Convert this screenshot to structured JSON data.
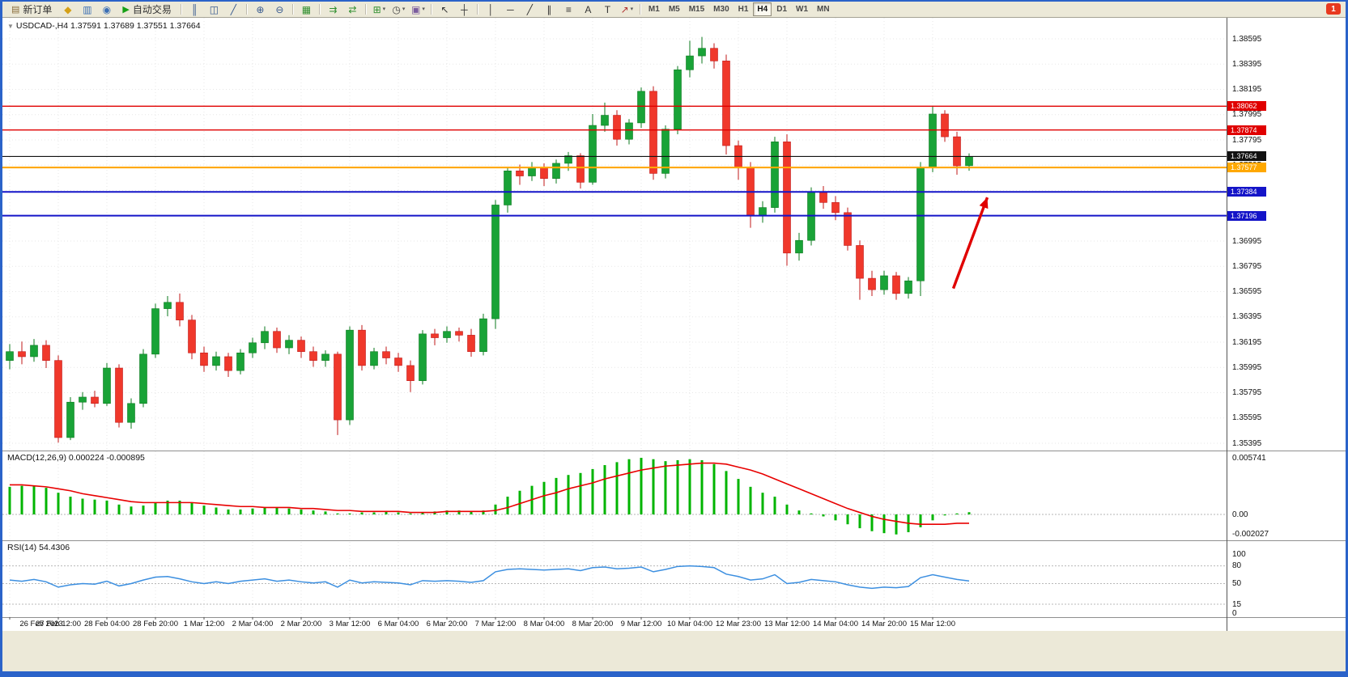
{
  "window": {
    "border_color": "#2b63c9",
    "bg": "#ece9d8"
  },
  "toolbar": {
    "items": [
      {
        "kind": "button",
        "name": "new-order-button",
        "icon_name": "new-order-icon",
        "glyph": "▤",
        "glyph_color": "#8a6d3b",
        "label": "新订单"
      },
      {
        "kind": "icon",
        "name": "metaeditor-icon",
        "glyph": "◆",
        "color": "#d4a017"
      },
      {
        "kind": "icon",
        "name": "market-watch-icon",
        "glyph": "▥",
        "color": "#3b6fb5"
      },
      {
        "kind": "icon",
        "name": "signals-icon",
        "glyph": "◉",
        "color": "#3b6fb5"
      },
      {
        "kind": "button",
        "name": "autotrading-button",
        "icon_name": "autotrading-icon",
        "glyph": "▶",
        "glyph_color": "#16a016",
        "label": "自动交易"
      },
      {
        "kind": "sep"
      },
      {
        "kind": "icon",
        "name": "bar-chart-icon",
        "glyph": "║",
        "color": "#35588f"
      },
      {
        "kind": "icon",
        "name": "candlestick-chart-icon",
        "glyph": "◫",
        "color": "#35588f"
      },
      {
        "kind": "icon",
        "name": "line-chart-icon",
        "glyph": "╱",
        "color": "#35588f"
      },
      {
        "kind": "sep"
      },
      {
        "kind": "icon",
        "name": "zoom-in-icon",
        "glyph": "⊕",
        "color": "#35588f"
      },
      {
        "kind": "icon",
        "name": "zoom-out-icon",
        "glyph": "⊖",
        "color": "#35588f"
      },
      {
        "kind": "sep"
      },
      {
        "kind": "icon",
        "name": "tile-windows-icon",
        "glyph": "▦",
        "color": "#2f8f2f"
      },
      {
        "kind": "sep"
      },
      {
        "kind": "icon",
        "name": "auto-scroll-icon",
        "glyph": "⇉",
        "color": "#2f8f2f"
      },
      {
        "kind": "icon",
        "name": "chart-shift-icon",
        "glyph": "⇄",
        "color": "#2f8f2f"
      },
      {
        "kind": "sep"
      },
      {
        "kind": "icon",
        "name": "indicators-icon",
        "glyph": "⊞",
        "color": "#2f8f2f",
        "dropdown": true
      },
      {
        "kind": "icon",
        "name": "periods-icon",
        "glyph": "◷",
        "color": "#444444",
        "dropdown": true
      },
      {
        "kind": "icon",
        "name": "templates-icon",
        "glyph": "▣",
        "color": "#7a5c9e",
        "dropdown": true
      },
      {
        "kind": "sep"
      },
      {
        "kind": "icon",
        "name": "cursor-icon",
        "glyph": "↖",
        "color": "#333333"
      },
      {
        "kind": "icon",
        "name": "crosshair-icon",
        "glyph": "┼",
        "color": "#333333"
      },
      {
        "kind": "sep"
      },
      {
        "kind": "icon",
        "name": "vertical-line-icon",
        "glyph": "│",
        "color": "#333333"
      },
      {
        "kind": "icon",
        "name": "horizontal-line-icon",
        "glyph": "─",
        "color": "#333333"
      },
      {
        "kind": "icon",
        "name": "trendline-icon",
        "glyph": "╱",
        "color": "#333333"
      },
      {
        "kind": "icon",
        "name": "channel-icon",
        "glyph": "∥",
        "color": "#333333"
      },
      {
        "kind": "icon",
        "name": "fibonacci-icon",
        "glyph": "≡",
        "color": "#333333"
      },
      {
        "kind": "icon",
        "name": "text-icon",
        "glyph": "A",
        "color": "#333333"
      },
      {
        "kind": "icon",
        "name": "label-icon",
        "glyph": "T",
        "color": "#333333"
      },
      {
        "kind": "icon",
        "name": "arrows-icon",
        "glyph": "↗",
        "color": "#b03030",
        "dropdown": true
      },
      {
        "kind": "sep"
      },
      {
        "kind": "tf",
        "name": "timeframe-m1",
        "label": "M1"
      },
      {
        "kind": "tf",
        "name": "timeframe-m5",
        "label": "M5"
      },
      {
        "kind": "tf",
        "name": "timeframe-m15",
        "label": "M15"
      },
      {
        "kind": "tf",
        "name": "timeframe-m30",
        "label": "M30"
      },
      {
        "kind": "tf",
        "name": "timeframe-h1",
        "label": "H1"
      },
      {
        "kind": "tf",
        "name": "timeframe-h4",
        "label": "H4",
        "active": true
      },
      {
        "kind": "tf",
        "name": "timeframe-d1",
        "label": "D1"
      },
      {
        "kind": "tf",
        "name": "timeframe-w1",
        "label": "W1"
      },
      {
        "kind": "tf",
        "name": "timeframe-mn",
        "label": "MN"
      }
    ],
    "notification": {
      "label": "1"
    }
  },
  "chart_data": [
    {
      "type": "candlestick",
      "symbol": "USDCAD",
      "timeframe": "H4",
      "collapse_glyph": "▼",
      "title": "USDCAD-,H4 1.37591 1.37689 1.37551 1.37664",
      "current": {
        "open": "1.37591",
        "high": "1.37689",
        "low": "1.37551",
        "close": "1.37664"
      },
      "x_tick_labels": [
        "26 Feb 2023",
        "27 Feb 12:00",
        "28 Feb 04:00",
        "28 Feb 20:00",
        "1 Mar 12:00",
        "2 Mar 04:00",
        "2 Mar 20:00",
        "3 Mar 12:00",
        "6 Mar 04:00",
        "6 Mar 20:00",
        "7 Mar 12:00",
        "8 Mar 04:00",
        "8 Mar 20:00",
        "9 Mar 12:00",
        "10 Mar 04:00",
        "12 Mar 23:00",
        "13 Mar 12:00",
        "14 Mar 04:00",
        "14 Mar 20:00",
        "15 Mar 12:00"
      ],
      "x_tick_every": 4,
      "y_axis": {
        "max": 1.38595,
        "min": 1.35395,
        "step": 0.002,
        "labels": [
          "1.38595",
          "1.38395",
          "1.38195",
          "1.37995",
          "1.37795",
          "1.37595",
          "1.37395",
          "1.37195",
          "1.36995",
          "1.36795",
          "1.36595",
          "1.36395",
          "1.36195",
          "1.35995",
          "1.35795",
          "1.35595",
          "1.35395"
        ]
      },
      "ohlc": [
        [
          1.3605,
          1.3618,
          1.3598,
          1.3612
        ],
        [
          1.3612,
          1.362,
          1.3602,
          1.3608
        ],
        [
          1.3608,
          1.3622,
          1.3604,
          1.3617
        ],
        [
          1.3617,
          1.3621,
          1.3599,
          1.3605
        ],
        [
          1.3605,
          1.3609,
          1.354,
          1.3544
        ],
        [
          1.3544,
          1.3576,
          1.3542,
          1.3572
        ],
        [
          1.3572,
          1.358,
          1.3566,
          1.3576
        ],
        [
          1.3576,
          1.3581,
          1.3568,
          1.3571
        ],
        [
          1.3571,
          1.3603,
          1.3569,
          1.3599
        ],
        [
          1.3599,
          1.3602,
          1.3552,
          1.3556
        ],
        [
          1.3556,
          1.3575,
          1.3551,
          1.3571
        ],
        [
          1.3571,
          1.3614,
          1.3568,
          1.361
        ],
        [
          1.361,
          1.365,
          1.3607,
          1.3646
        ],
        [
          1.3646,
          1.3656,
          1.364,
          1.3651
        ],
        [
          1.3651,
          1.3658,
          1.3632,
          1.3637
        ],
        [
          1.3637,
          1.3641,
          1.3606,
          1.3611
        ],
        [
          1.3611,
          1.3616,
          1.3596,
          1.3601
        ],
        [
          1.3601,
          1.3612,
          1.3597,
          1.3608
        ],
        [
          1.3608,
          1.3611,
          1.3592,
          1.3597
        ],
        [
          1.3597,
          1.3614,
          1.3594,
          1.3611
        ],
        [
          1.3611,
          1.3623,
          1.3607,
          1.3619
        ],
        [
          1.3619,
          1.3632,
          1.3614,
          1.3628
        ],
        [
          1.3628,
          1.3631,
          1.3611,
          1.3615
        ],
        [
          1.3615,
          1.3625,
          1.361,
          1.3621
        ],
        [
          1.3621,
          1.3624,
          1.3607,
          1.3612
        ],
        [
          1.3612,
          1.3616,
          1.36,
          1.3605
        ],
        [
          1.3605,
          1.3613,
          1.36,
          1.361
        ],
        [
          1.361,
          1.3612,
          1.3546,
          1.3558
        ],
        [
          1.3558,
          1.3632,
          1.3554,
          1.3629
        ],
        [
          1.3629,
          1.3633,
          1.3597,
          1.3601
        ],
        [
          1.3601,
          1.3615,
          1.3598,
          1.3612
        ],
        [
          1.3612,
          1.3616,
          1.3602,
          1.3607
        ],
        [
          1.3607,
          1.3611,
          1.3596,
          1.3601
        ],
        [
          1.3601,
          1.3605,
          1.358,
          1.3589
        ],
        [
          1.3589,
          1.3629,
          1.3586,
          1.3626
        ],
        [
          1.3626,
          1.363,
          1.3617,
          1.3623
        ],
        [
          1.3623,
          1.3632,
          1.3619,
          1.3628
        ],
        [
          1.3628,
          1.3631,
          1.362,
          1.3625
        ],
        [
          1.3625,
          1.363,
          1.3608,
          1.3612
        ],
        [
          1.3612,
          1.3642,
          1.3609,
          1.3638
        ],
        [
          1.3638,
          1.3732,
          1.363,
          1.3728
        ],
        [
          1.3728,
          1.3758,
          1.3722,
          1.3755
        ],
        [
          1.3755,
          1.376,
          1.3744,
          1.3751
        ],
        [
          1.3751,
          1.3762,
          1.3747,
          1.3758
        ],
        [
          1.3758,
          1.3761,
          1.3743,
          1.3749
        ],
        [
          1.3749,
          1.3764,
          1.3745,
          1.3761
        ],
        [
          1.3761,
          1.377,
          1.3755,
          1.3767
        ],
        [
          1.3767,
          1.3769,
          1.3741,
          1.3746
        ],
        [
          1.3746,
          1.38,
          1.3744,
          1.3791
        ],
        [
          1.3791,
          1.3809,
          1.3786,
          1.3799
        ],
        [
          1.3799,
          1.3803,
          1.3775,
          1.378
        ],
        [
          1.378,
          1.3796,
          1.3776,
          1.3793
        ],
        [
          1.3793,
          1.3821,
          1.3789,
          1.3818
        ],
        [
          1.3818,
          1.3822,
          1.3748,
          1.3753
        ],
        [
          1.3753,
          1.3791,
          1.3749,
          1.3788
        ],
        [
          1.3788,
          1.3838,
          1.3784,
          1.3835
        ],
        [
          1.3835,
          1.3858,
          1.3829,
          1.3846
        ],
        [
          1.3846,
          1.3861,
          1.384,
          1.3852
        ],
        [
          1.3852,
          1.3856,
          1.3836,
          1.3842
        ],
        [
          1.3842,
          1.3847,
          1.3768,
          1.3775
        ],
        [
          1.3775,
          1.3779,
          1.3748,
          1.3758
        ],
        [
          1.3758,
          1.3762,
          1.371,
          1.372
        ],
        [
          1.372,
          1.3731,
          1.3714,
          1.3726
        ],
        [
          1.3726,
          1.3782,
          1.3722,
          1.3778
        ],
        [
          1.3778,
          1.3784,
          1.368,
          1.369
        ],
        [
          1.369,
          1.3706,
          1.3684,
          1.37
        ],
        [
          1.37,
          1.3742,
          1.3696,
          1.3738
        ],
        [
          1.3738,
          1.3743,
          1.3725,
          1.373
        ],
        [
          1.373,
          1.3735,
          1.3716,
          1.3722
        ],
        [
          1.3722,
          1.3726,
          1.3692,
          1.3696
        ],
        [
          1.3696,
          1.37,
          1.3653,
          1.367
        ],
        [
          1.367,
          1.3676,
          1.3656,
          1.3661
        ],
        [
          1.3661,
          1.3676,
          1.3657,
          1.3672
        ],
        [
          1.3672,
          1.3675,
          1.3653,
          1.3658
        ],
        [
          1.3658,
          1.3671,
          1.3654,
          1.3668
        ],
        [
          1.3668,
          1.3762,
          1.3656,
          1.3758
        ],
        [
          1.3758,
          1.3806,
          1.3754,
          1.38
        ],
        [
          1.38,
          1.3803,
          1.3778,
          1.3782
        ],
        [
          1.3782,
          1.3786,
          1.3752,
          1.3759
        ],
        [
          1.37591,
          1.37689,
          1.37551,
          1.37664
        ]
      ],
      "hlines": [
        {
          "price": 1.38062,
          "color": "#e00000",
          "width": 1.4,
          "tag": "1.38062",
          "tag_bg": "#e00000"
        },
        {
          "price": 1.37874,
          "color": "#e00000",
          "width": 1.4,
          "tag": "1.37874",
          "tag_bg": "#e00000"
        },
        {
          "price": 1.37664,
          "color": "#111111",
          "width": 1.1,
          "tag": "1.37664",
          "tag_bg": "#111111"
        },
        {
          "price": 1.37577,
          "color": "#ffa800",
          "width": 2.2,
          "tag": "1.37577",
          "tag_bg": "#ffa800"
        },
        {
          "price": 1.37384,
          "color": "#1414c8",
          "width": 2.0,
          "tag": "1.37384",
          "tag_bg": "#1414c8"
        },
        {
          "price": 1.37196,
          "color": "#1414c8",
          "width": 2.0,
          "tag": "1.37196",
          "tag_bg": "#1414c8"
        }
      ],
      "annotation_arrow": {
        "x1_bar": 77.7,
        "price1": 1.3662,
        "x2_bar": 80.5,
        "price2": 1.3734,
        "color": "#e00000"
      },
      "colors": {
        "up": "#19a337",
        "up_edge": "#0b7a1e",
        "down": "#f0382b",
        "down_edge": "#c01818",
        "grid": "#e7e7e7",
        "axis_text": "#111111"
      }
    },
    {
      "type": "macd",
      "label": "MACD(12,26,9)",
      "values_text": "0.000224 -0.000895",
      "y_labels": [
        {
          "value": 0.005741,
          "text": "0.005741"
        },
        {
          "value": 0,
          "text": "0.00"
        },
        {
          "value": -0.002027,
          "text": "-0.002027"
        }
      ],
      "histogram": [
        0.0028,
        0.0029,
        0.0029,
        0.0027,
        0.0022,
        0.0018,
        0.0016,
        0.0015,
        0.0014,
        0.001,
        0.0008,
        0.0009,
        0.0012,
        0.0014,
        0.0014,
        0.0012,
        0.0009,
        0.0007,
        0.0005,
        0.0005,
        0.0006,
        0.0007,
        0.0007,
        0.0006,
        0.0005,
        0.0004,
        0.0003,
        0.0001,
        0.0001,
        0.0002,
        0.0002,
        0.0003,
        0.0002,
        0.0001,
        0.0002,
        0.0003,
        0.0004,
        0.0004,
        0.0003,
        0.0004,
        0.001,
        0.0018,
        0.0024,
        0.0029,
        0.0033,
        0.0037,
        0.004,
        0.0042,
        0.0046,
        0.005,
        0.0053,
        0.0056,
        0.005741,
        0.0056,
        0.0054,
        0.0055,
        0.0056,
        0.0055,
        0.0051,
        0.0044,
        0.0036,
        0.0028,
        0.0022,
        0.0018,
        0.001,
        0.0004,
        0.0001,
        -0.0002,
        -0.0006,
        -0.001,
        -0.0014,
        -0.0017,
        -0.0019,
        -0.002027,
        -0.0018,
        -0.0013,
        -0.0006,
        -0.0001,
        0.0001,
        0.000224
      ],
      "signal": [
        0.003,
        0.003,
        0.0029,
        0.0028,
        0.0026,
        0.0024,
        0.0021,
        0.0019,
        0.0017,
        0.0015,
        0.0013,
        0.0012,
        0.0012,
        0.0012,
        0.0012,
        0.0012,
        0.0011,
        0.001,
        0.0009,
        0.0008,
        0.0008,
        0.0007,
        0.0007,
        0.0007,
        0.0006,
        0.0006,
        0.0005,
        0.0004,
        0.0004,
        0.0003,
        0.0003,
        0.0003,
        0.0003,
        0.0002,
        0.0002,
        0.0002,
        0.0003,
        0.0003,
        0.0003,
        0.0003,
        0.0004,
        0.0007,
        0.0011,
        0.0015,
        0.0019,
        0.0022,
        0.0026,
        0.0029,
        0.0032,
        0.0036,
        0.0039,
        0.0042,
        0.0045,
        0.0047,
        0.0049,
        0.005,
        0.0051,
        0.0052,
        0.0052,
        0.0051,
        0.0048,
        0.0045,
        0.0041,
        0.0036,
        0.0031,
        0.0026,
        0.0021,
        0.0016,
        0.0011,
        0.0006,
        0.0002,
        -0.0002,
        -0.0005,
        -0.0007,
        -0.0009,
        -0.001,
        -0.001,
        -0.001,
        -0.0009,
        -0.000895
      ],
      "colors": {
        "histogram": "#00b400",
        "signal": "#e80000"
      }
    },
    {
      "type": "rsi",
      "label": "RSI(14)",
      "value_text": "54.4306",
      "levels": [
        80,
        50,
        15
      ],
      "y_labels": [
        {
          "value": 100,
          "text": "100"
        },
        {
          "value": 80,
          "text": "80"
        },
        {
          "value": 50,
          "text": "50"
        },
        {
          "value": 15,
          "text": "15"
        },
        {
          "value": 0,
          "text": "0"
        }
      ],
      "values": [
        56,
        54,
        57,
        53,
        44,
        48,
        50,
        49,
        54,
        46,
        50,
        56,
        61,
        62,
        58,
        53,
        50,
        53,
        50,
        54,
        56,
        58,
        54,
        56,
        53,
        51,
        53,
        44,
        56,
        51,
        53,
        52,
        51,
        48,
        55,
        54,
        55,
        54,
        52,
        55,
        70,
        74,
        75,
        74,
        73,
        74,
        75,
        72,
        77,
        78,
        75,
        76,
        78,
        70,
        74,
        79,
        80,
        79,
        77,
        66,
        62,
        56,
        58,
        65,
        50,
        52,
        57,
        55,
        53,
        48,
        44,
        42,
        44,
        43,
        45,
        60,
        65,
        61,
        57,
        54.4306
      ],
      "color": "#3c8fe0"
    }
  ]
}
